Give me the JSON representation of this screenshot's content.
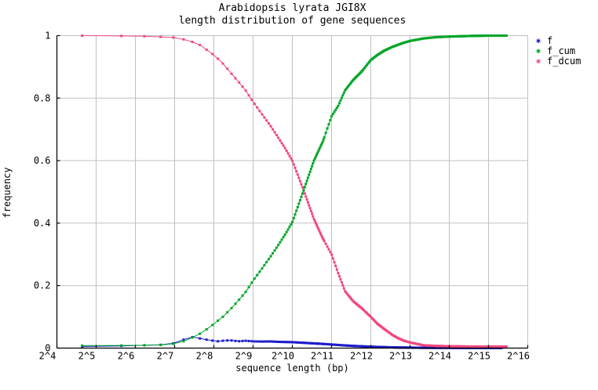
{
  "chart_data": {
    "type": "line",
    "title": "Arabidopsis lyrata JGI8X",
    "subtitle": "length distribution of gene sequences",
    "xlabel": "sequence length (bp)",
    "ylabel": "frequency",
    "x_scale": "log2",
    "x_range_log2": [
      4,
      16
    ],
    "x_ticks": [
      "2^4",
      "2^5",
      "2^6",
      "2^7",
      "2^8",
      "2^9",
      "2^10",
      "2^11",
      "2^12",
      "2^13",
      "2^14",
      "2^15",
      "2^16"
    ],
    "y_range": [
      0,
      1
    ],
    "y_ticks": [
      "0",
      "0.2",
      "0.4",
      "0.6",
      "0.8",
      "1"
    ],
    "grid": true,
    "grid_color": "#c0c0c0",
    "axis_color": "#000000",
    "background_color": "#ffffff",
    "legend_position": "outside-top-right",
    "bin_step_bp": 25,
    "series": [
      {
        "name": "f",
        "color": "#1c1ccb",
        "points": [
          [
            25,
            0.005
          ],
          [
            50,
            0.007
          ],
          [
            75,
            0.009
          ],
          [
            100,
            0.0105
          ],
          [
            117,
            0.012
          ],
          [
            135,
            0.019
          ],
          [
            150,
            0.027
          ],
          [
            171,
            0.036
          ],
          [
            200,
            0.031
          ],
          [
            220,
            0.0275
          ],
          [
            250,
            0.024
          ],
          [
            271,
            0.0215
          ],
          [
            300,
            0.0235
          ],
          [
            342,
            0.025
          ],
          [
            375,
            0.023
          ],
          [
            400,
            0.022
          ],
          [
            450,
            0.0235
          ],
          [
            512,
            0.0215
          ],
          [
            600,
            0.021
          ],
          [
            700,
            0.0213
          ],
          [
            800,
            0.02
          ],
          [
            900,
            0.0195
          ],
          [
            1024,
            0.019
          ],
          [
            1250,
            0.017
          ],
          [
            1500,
            0.015
          ],
          [
            1750,
            0.0135
          ],
          [
            2048,
            0.0115
          ],
          [
            2600,
            0.0085
          ],
          [
            3000,
            0.007
          ],
          [
            4096,
            0.0045
          ],
          [
            5200,
            0.003
          ],
          [
            6550,
            0.002
          ],
          [
            8192,
            0.0015
          ],
          [
            10400,
            0.001
          ],
          [
            16384,
            0.0008
          ],
          [
            32768,
            0.0005
          ],
          [
            41700,
            0.0005
          ]
        ]
      },
      {
        "name": "f_cum",
        "color": "#00a529",
        "points": [
          [
            25,
            0.008
          ],
          [
            50,
            0.0085
          ],
          [
            75,
            0.009
          ],
          [
            100,
            0.01
          ],
          [
            117,
            0.012
          ],
          [
            135,
            0.016
          ],
          [
            150,
            0.022
          ],
          [
            171,
            0.032
          ],
          [
            200,
            0.046
          ],
          [
            225,
            0.06
          ],
          [
            250,
            0.074
          ],
          [
            275,
            0.088
          ],
          [
            300,
            0.1
          ],
          [
            350,
            0.128
          ],
          [
            400,
            0.155
          ],
          [
            450,
            0.18
          ],
          [
            512,
            0.216
          ],
          [
            600,
            0.255
          ],
          [
            700,
            0.294
          ],
          [
            800,
            0.33
          ],
          [
            900,
            0.363
          ],
          [
            1024,
            0.403
          ],
          [
            1250,
            0.505
          ],
          [
            1500,
            0.6
          ],
          [
            1750,
            0.66
          ],
          [
            2048,
            0.742
          ],
          [
            2300,
            0.775
          ],
          [
            2600,
            0.825
          ],
          [
            3000,
            0.858
          ],
          [
            3500,
            0.886
          ],
          [
            4096,
            0.922
          ],
          [
            4600,
            0.938
          ],
          [
            5200,
            0.952
          ],
          [
            6000,
            0.964
          ],
          [
            6550,
            0.97
          ],
          [
            7300,
            0.977
          ],
          [
            8192,
            0.983
          ],
          [
            10400,
            0.991
          ],
          [
            13000,
            0.995
          ],
          [
            16384,
            0.997
          ],
          [
            24000,
            0.999
          ],
          [
            32768,
            1.0
          ],
          [
            45300,
            1.0
          ]
        ]
      },
      {
        "name": "f_dcum",
        "color": "#f0487e",
        "points": [
          [
            25,
            1.0
          ],
          [
            50,
            0.999
          ],
          [
            75,
            0.998
          ],
          [
            100,
            0.996
          ],
          [
            125,
            0.994
          ],
          [
            150,
            0.988
          ],
          [
            175,
            0.98
          ],
          [
            200,
            0.97
          ],
          [
            225,
            0.955
          ],
          [
            250,
            0.941
          ],
          [
            275,
            0.926
          ],
          [
            300,
            0.911
          ],
          [
            350,
            0.878
          ],
          [
            400,
            0.85
          ],
          [
            450,
            0.824
          ],
          [
            512,
            0.788
          ],
          [
            600,
            0.748
          ],
          [
            700,
            0.71
          ],
          [
            800,
            0.673
          ],
          [
            900,
            0.64
          ],
          [
            1024,
            0.6
          ],
          [
            1250,
            0.505
          ],
          [
            1500,
            0.413
          ],
          [
            1750,
            0.352
          ],
          [
            2048,
            0.3
          ],
          [
            2300,
            0.24
          ],
          [
            2600,
            0.182
          ],
          [
            3000,
            0.15
          ],
          [
            3500,
            0.127
          ],
          [
            4096,
            0.1
          ],
          [
            4600,
            0.078
          ],
          [
            5200,
            0.061
          ],
          [
            6000,
            0.042
          ],
          [
            6550,
            0.033
          ],
          [
            7300,
            0.024
          ],
          [
            8192,
            0.018
          ],
          [
            10400,
            0.009
          ],
          [
            13000,
            0.007
          ],
          [
            16384,
            0.006
          ],
          [
            24000,
            0.005
          ],
          [
            32768,
            0.005
          ],
          [
            45300,
            0.005
          ]
        ]
      }
    ],
    "legend_marker": "✱"
  }
}
